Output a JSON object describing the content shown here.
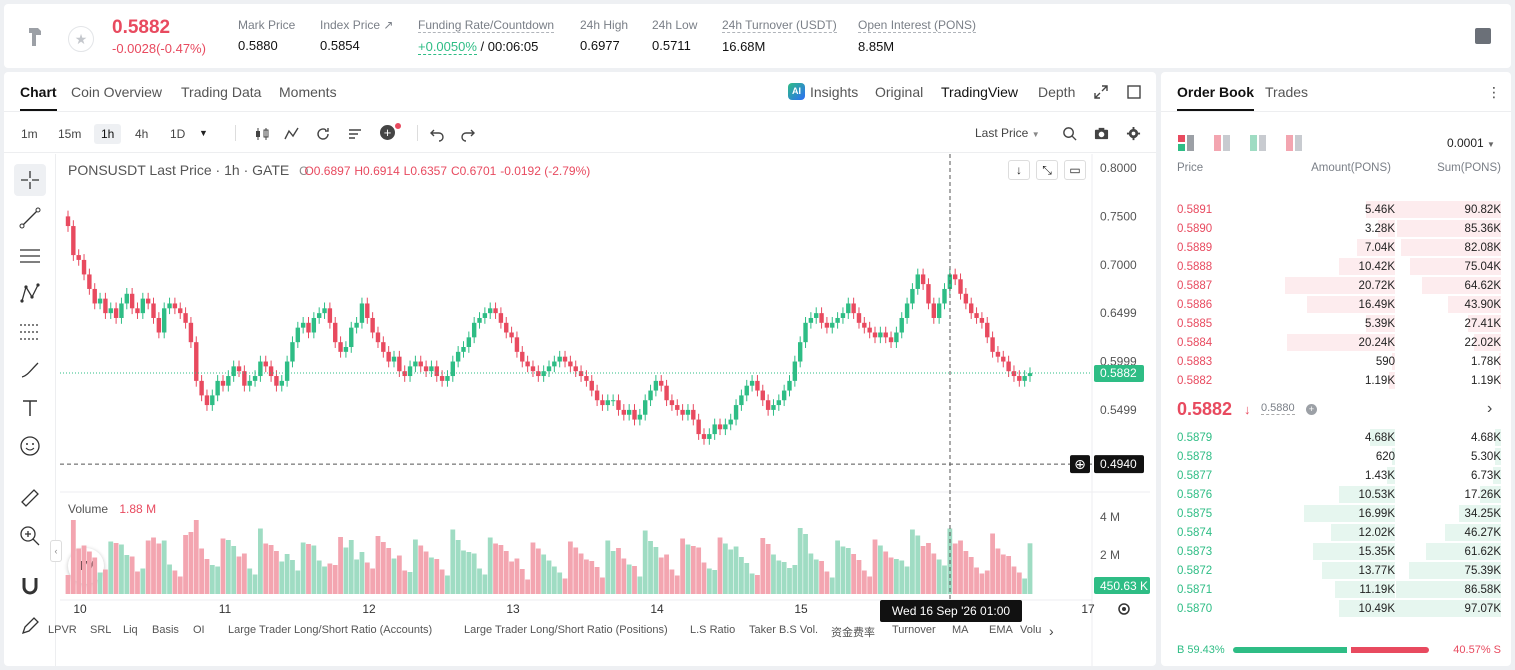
{
  "header": {
    "price": "0.5882",
    "change": "-0.0028(-0.47%)",
    "stats": [
      {
        "label": "Mark Price",
        "value": "0.5880"
      },
      {
        "label": "Index Price ↗",
        "value": "0.5854"
      },
      {
        "label": "Funding Rate/Countdown",
        "value_green": "+0.0050%",
        "value": " / 00:06:05"
      },
      {
        "label": "24h High",
        "value": "0.6977"
      },
      {
        "label": "24h Low",
        "value": "0.5711"
      },
      {
        "label": "24h Turnover (USDT)",
        "value": "16.68M"
      },
      {
        "label": "Open Interest (PONS)",
        "value": "8.85M"
      }
    ]
  },
  "chart_tabs": [
    "Chart",
    "Coin Overview",
    "Trading Data",
    "Moments"
  ],
  "view_tabs": [
    "Insights",
    "Original",
    "TradingView",
    "Depth"
  ],
  "timeframes": [
    "1m",
    "15m",
    "1h",
    "4h",
    "1D"
  ],
  "last_price_select": "Last Price",
  "info": {
    "symbol": "PONSUSDT Last Price · 1h · GATE",
    "o": "O0.6897",
    "h": "H0.6914",
    "l": "L0.6357",
    "c": "C0.6701",
    "chg": "-0.0192 (-2.79%)"
  },
  "volume": {
    "label": "Volume",
    "value": "1.88 M"
  },
  "price_axis": [
    "0.8000",
    "0.7500",
    "0.7000",
    "0.6499",
    "0.5999",
    "0.5499"
  ],
  "last_price_label": "0.5882",
  "cross_price_label": "0.4940",
  "volume_axis": [
    "4 M",
    "2 M"
  ],
  "volume_current": "450.63 K",
  "x_axis": [
    "10",
    "11",
    "12",
    "13",
    "14",
    "15",
    "17"
  ],
  "crosshair_time": "Wed 16 Sep '26   01:00",
  "indicators": [
    "LPVR",
    "SRL",
    "Liq",
    "Basis",
    "OI",
    "Large Trader Long/Short Ratio (Accounts)",
    "Large Trader Long/Short Ratio (Positions)",
    "L.S Ratio",
    "Taker B.S Vol.",
    "资金费率",
    "Turnover",
    "MA",
    "EMA",
    "Volu"
  ],
  "orderbook": {
    "tabs": [
      "Order Book",
      "Trades"
    ],
    "precision": "0.0001",
    "cols": [
      "Price",
      "Amount(PONS)",
      "Sum(PONS)"
    ],
    "asks": [
      [
        "0.5891",
        "5.46K",
        "90.82K"
      ],
      [
        "0.5890",
        "3.28K",
        "85.36K"
      ],
      [
        "0.5889",
        "7.04K",
        "82.08K"
      ],
      [
        "0.5888",
        "10.42K",
        "75.04K"
      ],
      [
        "0.5887",
        "20.72K",
        "64.62K"
      ],
      [
        "0.5886",
        "16.49K",
        "43.90K"
      ],
      [
        "0.5885",
        "5.39K",
        "27.41K"
      ],
      [
        "0.5884",
        "20.24K",
        "22.02K"
      ],
      [
        "0.5883",
        "590",
        "1.78K"
      ],
      [
        "0.5882",
        "1.19K",
        "1.19K"
      ]
    ],
    "mid_price": "0.5882",
    "mid_mark": "0.5880",
    "bids": [
      [
        "0.5879",
        "4.68K",
        "4.68K"
      ],
      [
        "0.5878",
        "620",
        "5.30K"
      ],
      [
        "0.5877",
        "1.43K",
        "6.73K"
      ],
      [
        "0.5876",
        "10.53K",
        "17.26K"
      ],
      [
        "0.5875",
        "16.99K",
        "34.25K"
      ],
      [
        "0.5874",
        "12.02K",
        "46.27K"
      ],
      [
        "0.5873",
        "15.35K",
        "61.62K"
      ],
      [
        "0.5872",
        "13.77K",
        "75.39K"
      ],
      [
        "0.5871",
        "11.19K",
        "86.58K"
      ],
      [
        "0.5870",
        "10.49K",
        "97.07K"
      ]
    ],
    "buy_ratio": "B 59.43%",
    "sell_ratio": "40.57% S",
    "buy_fraction": 0.5943
  },
  "colors": {
    "up": "#2ebd85",
    "down": "#e84a5f"
  }
}
